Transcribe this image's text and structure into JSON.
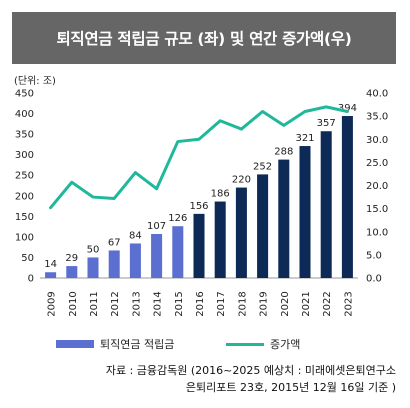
{
  "title": "퇴직연금 적립금 규모 (좌) 및 연간 증가액(우)",
  "unit_label": "(단위: 조)",
  "legend": {
    "bar_label": "퇴직연금 적립금",
    "line_label": "증가액"
  },
  "source": {
    "line1": "자료 : 금융감독원 (2016~2025 예상치 : 미래에셋은퇴연구소",
    "line2": "은퇴리포트 23호, 2015년 12월 16일 기준 )"
  },
  "colors": {
    "actual_bar": "#5b6fd0",
    "forecast_bar": "#0d2a57",
    "line": "#1fb89a",
    "title_bg": "#666666"
  },
  "chart_data": {
    "type": "bar",
    "categories": [
      "2009",
      "2010",
      "2011",
      "2012",
      "2013",
      "2014",
      "2015",
      "2016",
      "2017",
      "2018",
      "2019",
      "2020",
      "2021",
      "2022",
      "2023"
    ],
    "series": [
      {
        "name": "퇴직연금 적립금",
        "type": "bar",
        "axis": "left",
        "values": [
          14,
          29,
          50,
          67,
          84,
          107,
          126,
          156,
          186,
          220,
          252,
          288,
          321,
          357,
          394
        ],
        "data_labels": [
          "14",
          "29",
          "50",
          "67",
          "84",
          "107",
          "126",
          "156",
          "186",
          "220",
          "252",
          "288",
          "321",
          "357",
          "394"
        ]
      },
      {
        "name": "증가액",
        "type": "line",
        "axis": "right",
        "values": [
          15.2,
          20.7,
          17.5,
          17.2,
          22.8,
          19.3,
          29.5,
          30.0,
          34.0,
          32.2,
          36.0,
          33.0,
          36.0,
          37.0,
          36.0
        ]
      }
    ],
    "forecast_start_index": 7,
    "y_left": {
      "min": 0,
      "max": 450,
      "ticks": [
        "0",
        "50",
        "100",
        "150",
        "200",
        "250",
        "300",
        "350",
        "400",
        "450"
      ]
    },
    "y_right": {
      "min": 0,
      "max": 40,
      "ticks": [
        "0.0",
        "5.0",
        "10.0",
        "15.0",
        "20.0",
        "25.0",
        "30.0",
        "35.0",
        "40.0"
      ]
    },
    "grid": false,
    "legend_position": "bottom"
  }
}
